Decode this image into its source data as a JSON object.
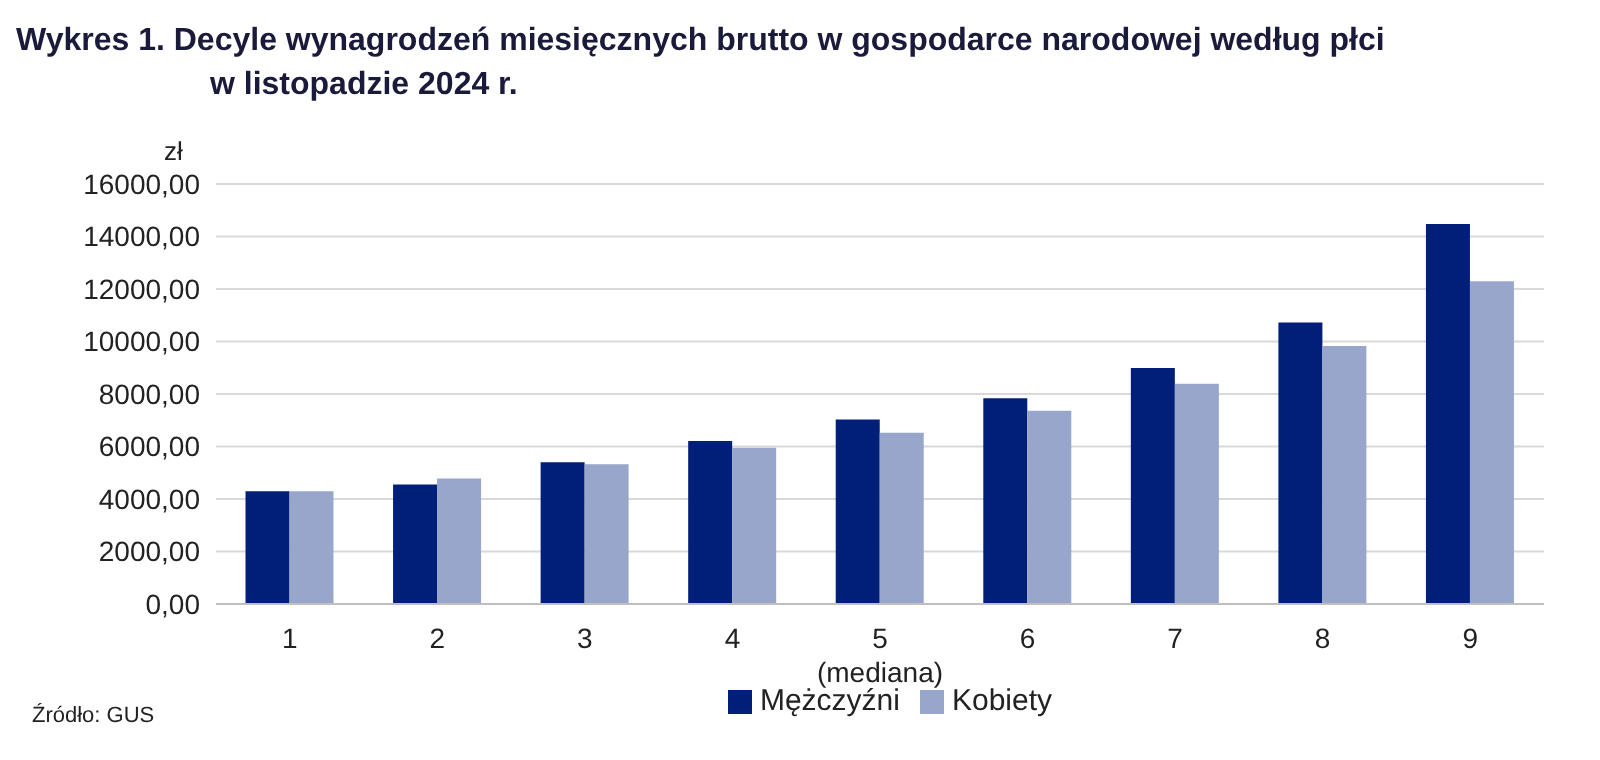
{
  "chart_data": {
    "type": "bar",
    "title": "Wykres 1. Decyle wynagrodzeń miesięcznych brutto w gospodarce narodowej według płci\nw listopadzie 2024 r.",
    "ylabel": "zł",
    "categories": [
      "1",
      "2",
      "3",
      "4",
      "5\n(mediana)",
      "6",
      "7",
      "8",
      "9"
    ],
    "series": [
      {
        "name": "Mężczyźni",
        "color": "#001f78",
        "values": [
          4300,
          4550,
          5400,
          6210,
          7030,
          7840,
          8990,
          10720,
          14480
        ]
      },
      {
        "name": "Kobiety",
        "color": "#98a6cb",
        "values": [
          4300,
          4780,
          5320,
          5950,
          6520,
          7360,
          8390,
          9830,
          12300
        ]
      }
    ],
    "ylim": [
      0,
      16000
    ],
    "yticks": [
      {
        "value": 0,
        "label": "0,00"
      },
      {
        "value": 2000,
        "label": "2000,00"
      },
      {
        "value": 4000,
        "label": "4000,00"
      },
      {
        "value": 6000,
        "label": "6000,00"
      },
      {
        "value": 8000,
        "label": "8000,00"
      },
      {
        "value": 10000,
        "label": "10000,00"
      },
      {
        "value": 12000,
        "label": "12000,00"
      },
      {
        "value": 14000,
        "label": "14000,00"
      },
      {
        "value": 16000,
        "label": "16000,00"
      }
    ],
    "grid": "y",
    "legend": "bottom",
    "annotations": [
      "Źródło: GUS"
    ]
  }
}
